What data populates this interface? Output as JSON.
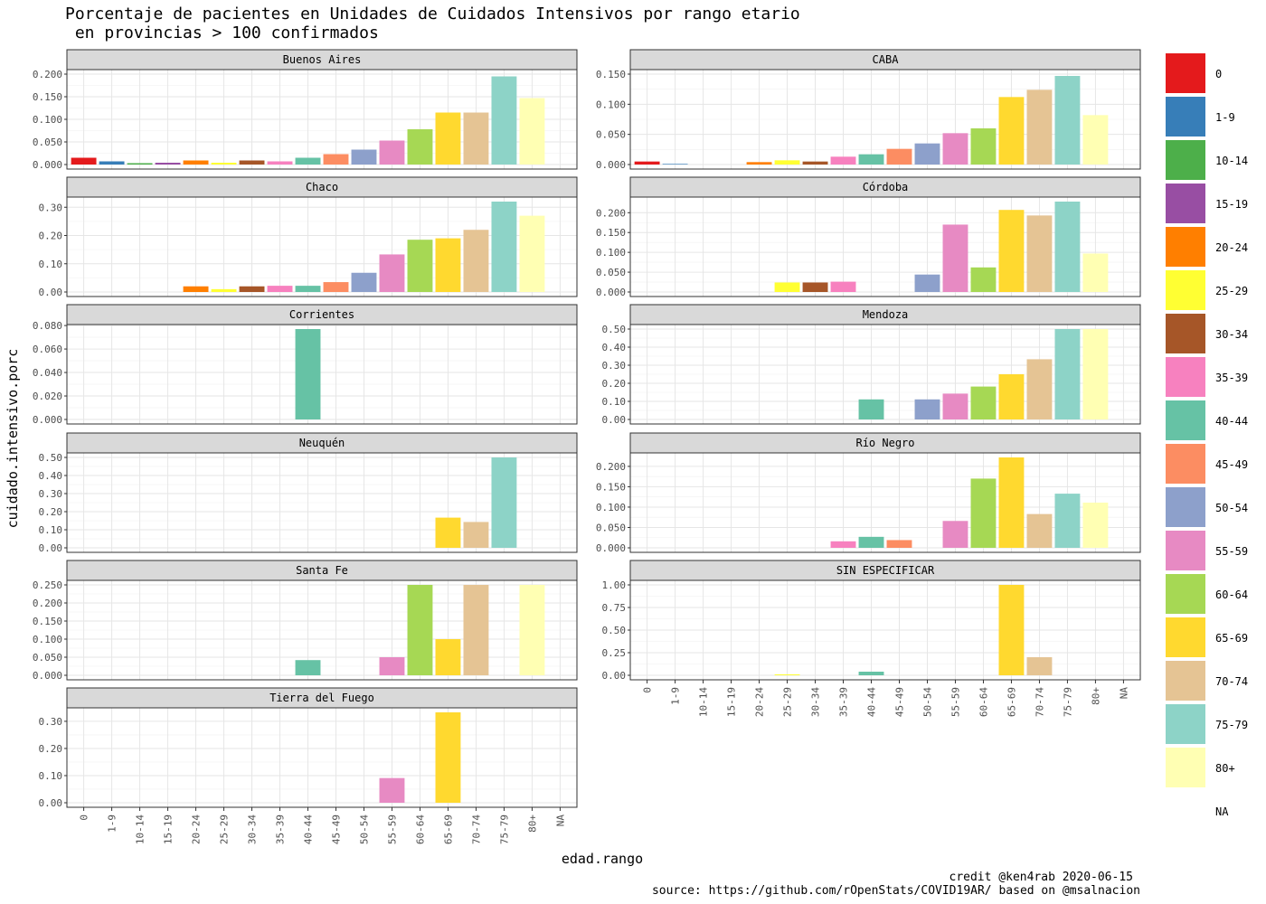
{
  "chart_data": {
    "type": "bar",
    "title_line1": "Porcentaje de pacientes en Unidades de Cuidados Intensivos por rango etario",
    "title_line2": " en provincias > 100 confirmados",
    "xlabel": "edad.rango",
    "ylabel": "cuidado.intensivo.porc",
    "caption_line1": "credit @ken4rab 2020-06-15",
    "caption_line2": "source: https://github.com/rOpenStats/COVID19AR/ based on @msalnacion",
    "legend_position": "right",
    "categories": [
      "0",
      "1-9",
      "10-14",
      "15-19",
      "20-24",
      "25-29",
      "30-34",
      "35-39",
      "40-44",
      "45-49",
      "50-54",
      "55-59",
      "60-64",
      "65-69",
      "70-74",
      "75-79",
      "80+",
      "NA"
    ],
    "colors": [
      "#e41a1c",
      "#377eb8",
      "#4daf4a",
      "#984ea3",
      "#ff7f00",
      "#ffff33",
      "#a65628",
      "#f781bf",
      "#66c2a5",
      "#fc8d62",
      "#8da0cb",
      "#e78ac3",
      "#a6d854",
      "#ffd92f",
      "#e5c494",
      "#8dd3c7",
      "#ffffb3",
      "#ffffff"
    ],
    "panels": [
      {
        "name": "Buenos Aires",
        "ylim": [
          0,
          0.2
        ],
        "ticks": [
          0,
          0.05,
          0.1,
          0.15,
          0.2
        ],
        "tick_labels": [
          "0.000",
          "0.050",
          "0.100",
          "0.150",
          "0.200"
        ],
        "values": [
          0.015,
          0.007,
          0.003,
          0.004,
          0.009,
          0.004,
          0.009,
          0.007,
          0.015,
          0.023,
          0.033,
          0.053,
          0.078,
          0.115,
          0.115,
          0.195,
          0.147,
          null
        ]
      },
      {
        "name": "CABA",
        "ylim": [
          0,
          0.15
        ],
        "ticks": [
          0,
          0.05,
          0.1,
          0.15
        ],
        "tick_labels": [
          "0.000",
          "0.050",
          "0.100",
          "0.150"
        ],
        "values": [
          0.005,
          0.001,
          0,
          0,
          0.004,
          0.007,
          0.005,
          0.013,
          0.017,
          0.026,
          0.035,
          0.052,
          0.06,
          0.112,
          0.124,
          0.147,
          0.082,
          null
        ]
      },
      {
        "name": "Chaco",
        "ylim": [
          0,
          0.32
        ],
        "ticks": [
          0,
          0.1,
          0.2,
          0.3
        ],
        "tick_labels": [
          "0.00",
          "0.10",
          "0.20",
          "0.30"
        ],
        "values": [
          0,
          0,
          0,
          0,
          0.02,
          0.01,
          0.02,
          0.022,
          0.022,
          0.035,
          0.068,
          0.133,
          0.185,
          0.19,
          0.22,
          0.32,
          0.27,
          null
        ]
      },
      {
        "name": "Córdoba",
        "ylim": [
          0,
          0.228
        ],
        "ticks": [
          0,
          0.05,
          0.1,
          0.15,
          0.2
        ],
        "tick_labels": [
          "0.000",
          "0.050",
          "0.100",
          "0.150",
          "0.200"
        ],
        "values": [
          0,
          0,
          0,
          0,
          0,
          0.024,
          0.024,
          0.026,
          0,
          0,
          0.044,
          0.17,
          0.062,
          0.207,
          0.193,
          0.228,
          0.097,
          null
        ]
      },
      {
        "name": "Corrientes",
        "ylim": [
          0,
          0.077
        ],
        "ticks": [
          0,
          0.02,
          0.04,
          0.06,
          0.08
        ],
        "tick_labels": [
          "0.000",
          "0.020",
          "0.040",
          "0.060",
          "0.080"
        ],
        "values": [
          0,
          0,
          0,
          0,
          0,
          0,
          0,
          0,
          0.077,
          0,
          0,
          0,
          0,
          0,
          0,
          0,
          0,
          null
        ]
      },
      {
        "name": "Mendoza",
        "ylim": [
          0,
          0.5
        ],
        "ticks": [
          0,
          0.1,
          0.2,
          0.3,
          0.4,
          0.5
        ],
        "tick_labels": [
          "0.00",
          "0.10",
          "0.20",
          "0.30",
          "0.40",
          "0.50"
        ],
        "values": [
          0,
          0,
          0,
          0,
          0,
          0,
          0,
          0,
          0.111,
          0,
          0.111,
          0.143,
          0.182,
          0.25,
          0.333,
          0.5,
          0.5,
          null
        ]
      },
      {
        "name": "Neuquén",
        "ylim": [
          0,
          0.5
        ],
        "ticks": [
          0,
          0.1,
          0.2,
          0.3,
          0.4,
          0.5
        ],
        "tick_labels": [
          "0.00",
          "0.10",
          "0.20",
          "0.30",
          "0.40",
          "0.50"
        ],
        "values": [
          0,
          0,
          0,
          0,
          0,
          0,
          0,
          0,
          0,
          0,
          0,
          0,
          0,
          0.167,
          0.143,
          0.5,
          0,
          null
        ]
      },
      {
        "name": "Río Negro",
        "ylim": [
          0,
          0.222
        ],
        "ticks": [
          0,
          0.05,
          0.1,
          0.15,
          0.2
        ],
        "tick_labels": [
          "0.000",
          "0.050",
          "0.100",
          "0.150",
          "0.200"
        ],
        "values": [
          0,
          0,
          0,
          0,
          0,
          0,
          0,
          0.016,
          0.027,
          0.019,
          0,
          0.066,
          0.17,
          0.222,
          0.083,
          0.133,
          0.111,
          null
        ]
      },
      {
        "name": "Santa Fe",
        "ylim": [
          0,
          0.25
        ],
        "ticks": [
          0,
          0.05,
          0.1,
          0.15,
          0.2,
          0.25
        ],
        "tick_labels": [
          "0.000",
          "0.050",
          "0.100",
          "0.150",
          "0.200",
          "0.250"
        ],
        "values": [
          0,
          0,
          0,
          0,
          0,
          0,
          0,
          0,
          0.042,
          0,
          0,
          0.05,
          0.25,
          0.1,
          0.25,
          0,
          0.25,
          null
        ]
      },
      {
        "name": "SIN ESPECIFICAR",
        "ylim": [
          0,
          1
        ],
        "ticks": [
          0,
          0.25,
          0.5,
          0.75,
          1
        ],
        "tick_labels": [
          "0.00",
          "0.25",
          "0.50",
          "0.75",
          "1.00"
        ],
        "values": [
          0,
          0,
          0,
          0,
          0,
          0.01,
          0,
          0,
          0.04,
          0,
          0,
          0,
          0,
          1,
          0.2,
          0,
          0,
          null
        ]
      },
      {
        "name": "Tierra del Fuego",
        "ylim": [
          0,
          0.333
        ],
        "ticks": [
          0,
          0.1,
          0.2,
          0.3
        ],
        "tick_labels": [
          "0.00",
          "0.10",
          "0.20",
          "0.30"
        ],
        "values": [
          0,
          0,
          0,
          0,
          0,
          0,
          0,
          0,
          0,
          0,
          0,
          0.091,
          0,
          0.333,
          0,
          0,
          0,
          null
        ]
      }
    ]
  }
}
